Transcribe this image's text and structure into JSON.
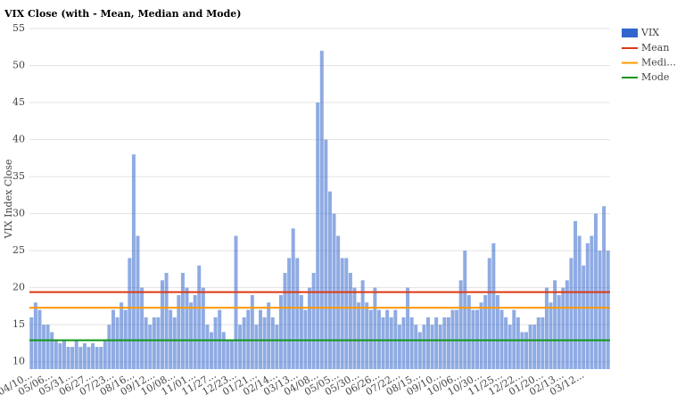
{
  "chart_data": {
    "type": "bar",
    "title": "VIX Close (with - Mean, Median and Mode)",
    "y_label": "VIX Index Close",
    "categories": [
      "04/10...",
      null,
      null,
      null,
      null,
      "05/06...",
      null,
      null,
      null,
      null,
      "05/31...",
      null,
      null,
      null,
      null,
      "06/27...",
      null,
      null,
      null,
      null,
      "07/23...",
      null,
      null,
      null,
      null,
      "08/16...",
      null,
      null,
      null,
      null,
      "09/12...",
      null,
      null,
      null,
      null,
      "10/08...",
      null,
      null,
      null,
      null,
      "11/01...",
      null,
      null,
      null,
      null,
      "11/27...",
      null,
      null,
      null,
      null,
      "12/23...",
      null,
      null,
      null,
      null,
      "01/21...",
      null,
      null,
      null,
      null,
      "02/14...",
      null,
      null,
      null,
      null,
      "03/13...",
      null,
      null,
      null,
      null,
      "04/08...",
      null,
      null,
      null,
      null,
      "05/05...",
      null,
      null,
      null,
      null,
      "05/30...",
      null,
      null,
      null,
      null,
      "06/26...",
      null,
      null,
      null,
      null,
      "07/22...",
      null,
      null,
      null,
      null,
      "08/15...",
      null,
      null,
      null,
      null,
      "09/10...",
      null,
      null,
      null,
      null,
      "10/06...",
      null,
      null,
      null,
      null,
      "10/30...",
      null,
      null,
      null,
      null,
      "11/25...",
      null,
      null,
      null,
      null,
      "12/22...",
      null,
      null,
      null,
      null,
      "01/20...",
      null,
      null,
      null,
      null,
      "02/13...",
      null,
      null,
      null,
      null,
      "03/12...",
      null,
      null,
      null,
      null,
      null,
      null
    ],
    "series": [
      {
        "name": "VIX",
        "color": "#3366cc",
        "values": [
          16,
          18,
          17,
          15,
          15,
          14,
          13,
          12.5,
          13,
          12,
          12,
          13,
          12,
          12.5,
          12,
          12.5,
          12,
          12,
          13,
          15,
          17,
          16,
          18,
          17,
          24,
          38,
          27,
          20,
          16,
          15,
          16,
          16,
          21,
          22,
          17,
          16,
          19,
          22,
          20,
          18,
          19,
          23,
          20,
          15,
          14,
          16,
          17,
          14,
          13,
          13,
          27,
          15,
          16,
          17,
          19,
          15,
          17,
          16,
          18,
          16,
          15,
          19,
          22,
          24,
          28,
          24,
          19,
          17,
          20,
          22,
          45,
          52,
          40,
          33,
          30,
          27,
          24,
          24,
          22,
          20,
          18,
          21,
          18,
          17,
          20,
          17,
          16,
          17,
          16,
          17,
          15,
          16,
          20,
          16,
          15,
          14,
          15,
          16,
          15,
          16,
          15,
          16,
          16,
          17,
          17,
          21,
          25,
          19,
          17,
          17,
          18,
          19,
          24,
          26,
          19,
          17,
          16,
          15,
          17,
          16,
          14,
          14,
          15,
          15,
          16,
          16,
          20,
          18,
          21,
          19,
          20,
          21,
          24,
          29,
          27,
          23,
          26,
          27,
          30,
          25,
          31,
          25
        ]
      }
    ],
    "lines": [
      {
        "name": "Mean",
        "color": "#dc3912",
        "value": 19.4
      },
      {
        "name": "Medi...",
        "color": "#ff9900",
        "value": 17.3
      },
      {
        "name": "Mode",
        "color": "#109618",
        "value": 12.9
      }
    ],
    "ylim": [
      9,
      55
    ],
    "yticks": [
      10,
      15,
      20,
      25,
      30,
      35,
      40,
      45,
      50,
      55
    ],
    "grid": true
  }
}
